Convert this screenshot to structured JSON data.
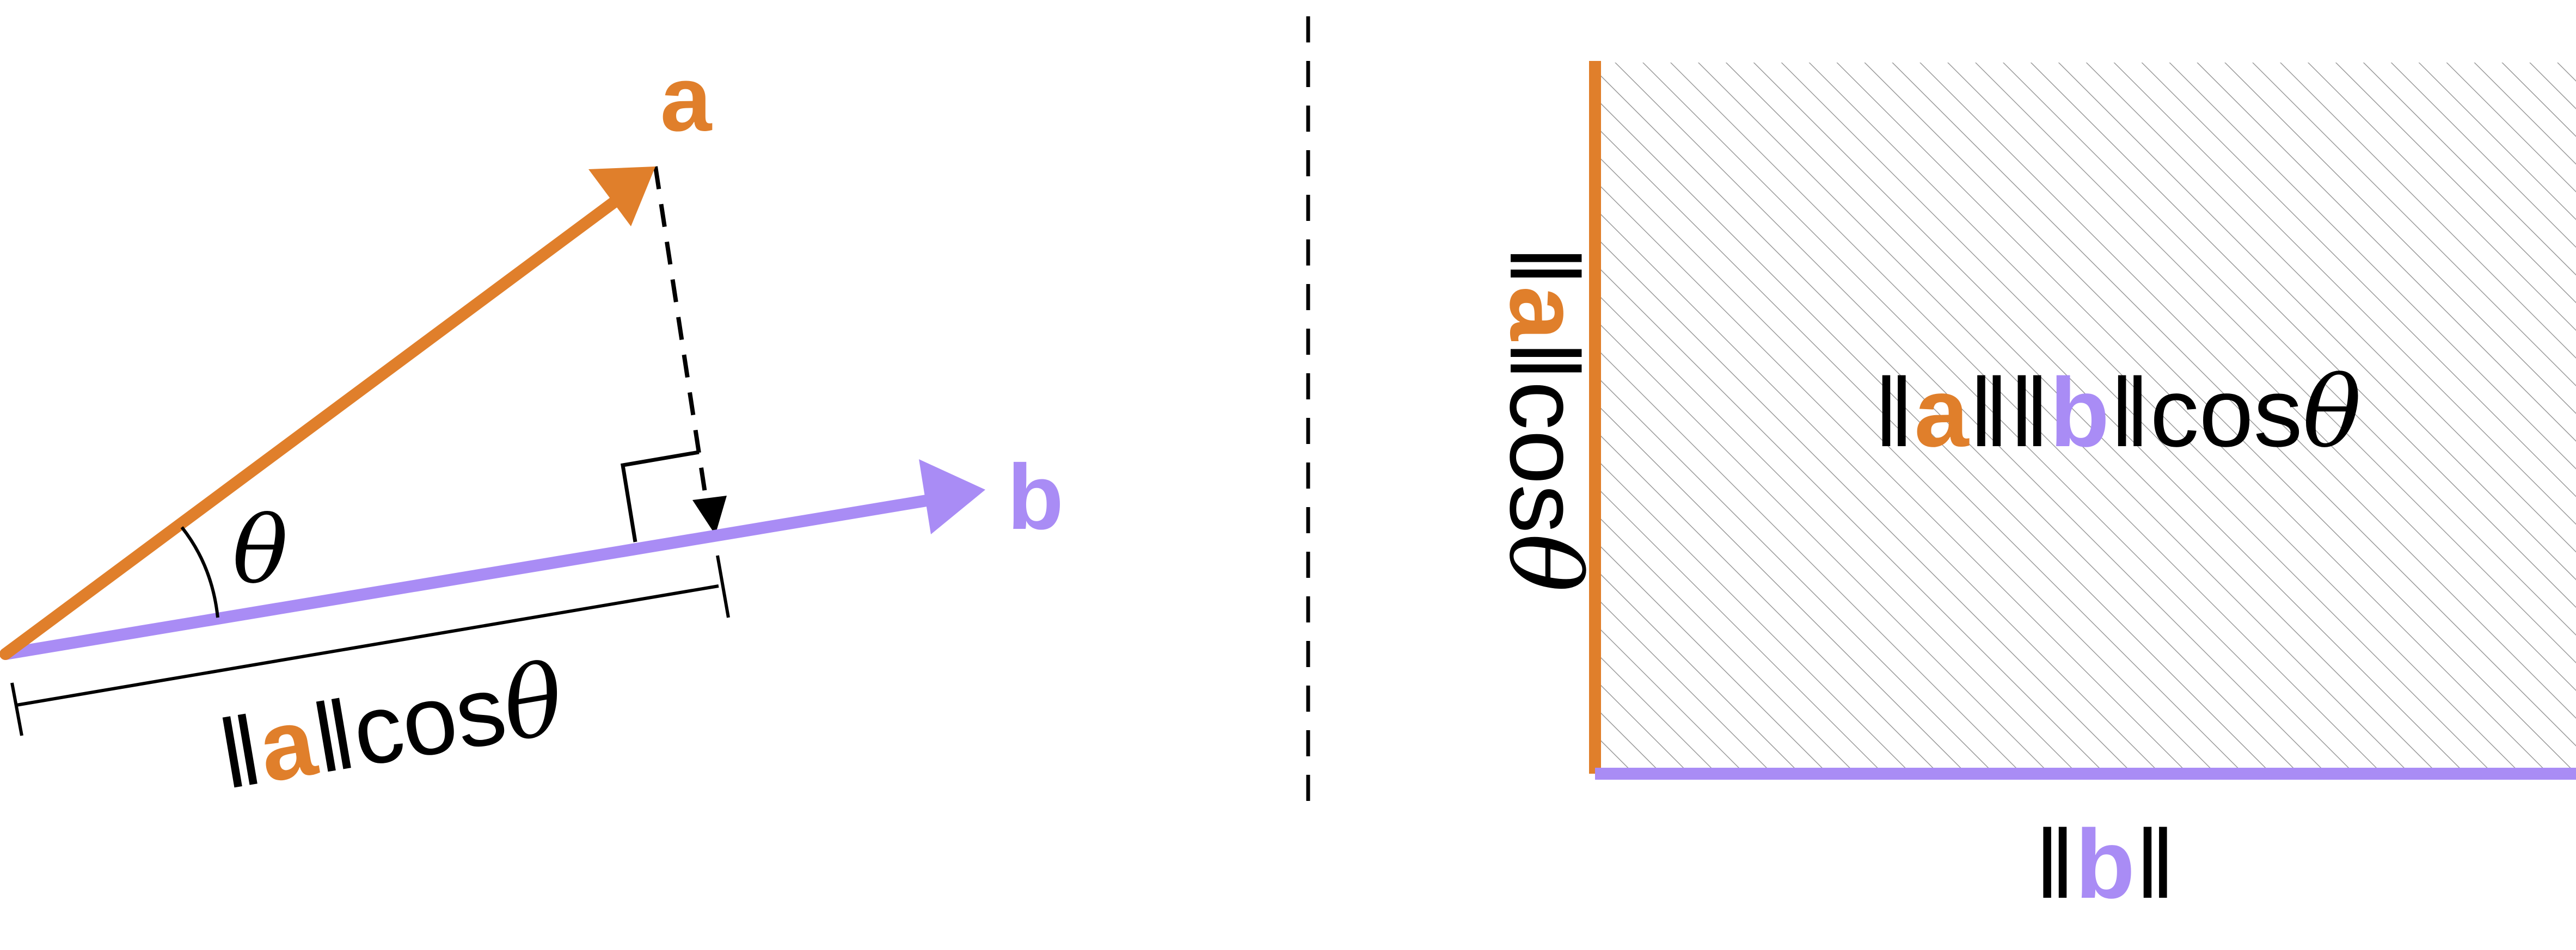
{
  "colors": {
    "vector_a": "#E07F2B",
    "vector_b": "#A98CF5",
    "ink": "#000000",
    "hatch": "#999999",
    "background": "#FFFFFF"
  },
  "left_panel": {
    "vector_a_label": "a",
    "vector_b_label": "b",
    "angle_label": "θ",
    "projection_label": {
      "norm_open": "‖",
      "vec": "a",
      "norm_close": "‖",
      "cos": "cos",
      "theta": "θ"
    }
  },
  "right_panel": {
    "area_label": {
      "norm_open_a": "‖",
      "vec_a": "a",
      "norm_close_a": "‖",
      "norm_open_b": "‖",
      "vec_b": "b",
      "norm_close_b": "‖",
      "cos": "cos",
      "theta": "θ"
    },
    "bottom_label": {
      "norm_open": "‖",
      "vec": "b",
      "norm_close": "‖"
    },
    "side_label": {
      "norm_open": "‖",
      "vec": "a",
      "norm_close": "‖",
      "cos": "cos",
      "theta": "θ"
    }
  }
}
